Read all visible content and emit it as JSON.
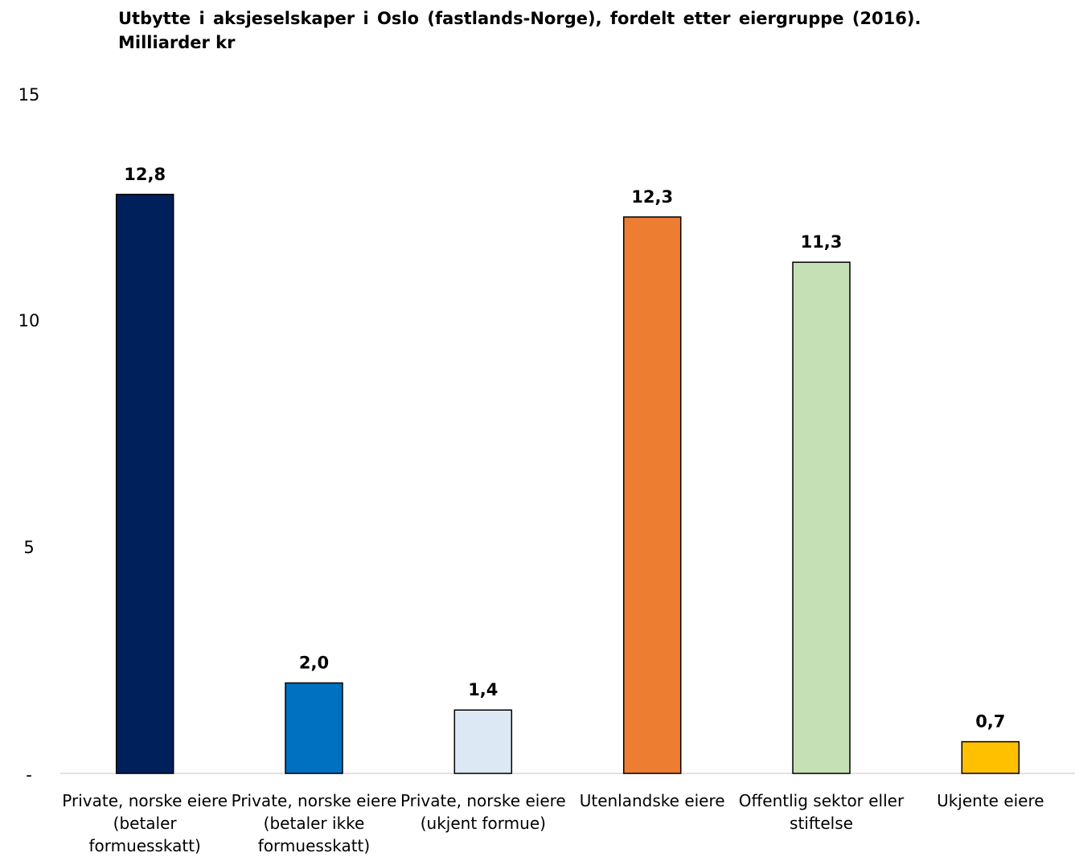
{
  "chart_data": {
    "type": "bar",
    "title_line1": "Utbytte i aksjeselskaper i Oslo (fastlands-Norge), fordelt etter eiergruppe (2016).",
    "title_line2": "Milliarder kr",
    "categories": [
      "Private, norske eiere (betaler formuesskatt)",
      "Private, norske eiere (betaler ikke formuesskatt)",
      "Private, norske eiere (ukjent formue)",
      "Utenlandske eiere",
      "Offentlig sektor eller stiftelse",
      "Ukjente eiere"
    ],
    "values": [
      12.8,
      2.0,
      1.4,
      12.3,
      11.3,
      0.7
    ],
    "data_labels": [
      "12,8",
      "2,0",
      "1,4",
      "12,3",
      "11,3",
      "0,7"
    ],
    "colors": [
      "#00205b",
      "#0070c0",
      "#dce9f5",
      "#ed7d31",
      "#c5e0b4",
      "#ffc000"
    ],
    "ylim": [
      0,
      15
    ],
    "yticks": [
      {
        "value": 0,
        "label": "-"
      },
      {
        "value": 5,
        "label": "5"
      },
      {
        "value": 10,
        "label": "10"
      },
      {
        "value": 15,
        "label": "15"
      }
    ],
    "xlabel": "",
    "ylabel": "",
    "grid": false,
    "legend": "none"
  }
}
